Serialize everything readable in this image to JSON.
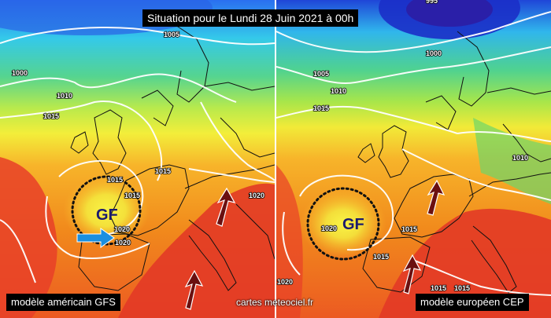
{
  "title": "Situation pour le Lundi 28 Juin 2021 à 00h",
  "credit": "cartes meteociel.fr",
  "left_panel": {
    "model_label": "modèle américain GFS",
    "high_pressure_label": "GF",
    "isobar_labels": [
      "1005",
      "1000",
      "1010",
      "1015",
      "1015",
      "1015",
      "1015",
      "1020",
      "1020",
      "1020"
    ]
  },
  "right_panel": {
    "model_label": "modèle européen CEP",
    "high_pressure_label": "GF",
    "isobar_labels": [
      "995",
      "1000",
      "1005",
      "1010",
      "1015",
      "1010",
      "1020",
      "1015",
      "1015",
      "1015",
      "1015",
      "1020"
    ]
  },
  "colors": {
    "deep_blue": "#1a3fd6",
    "cyan": "#2ad8e8",
    "green": "#4fd48a",
    "yellow": "#f3f03a",
    "orange": "#f7a420",
    "red": "#e83a2a",
    "arrow_dark_red": "#6b1010",
    "arrow_blue": "#1a8fe0"
  }
}
